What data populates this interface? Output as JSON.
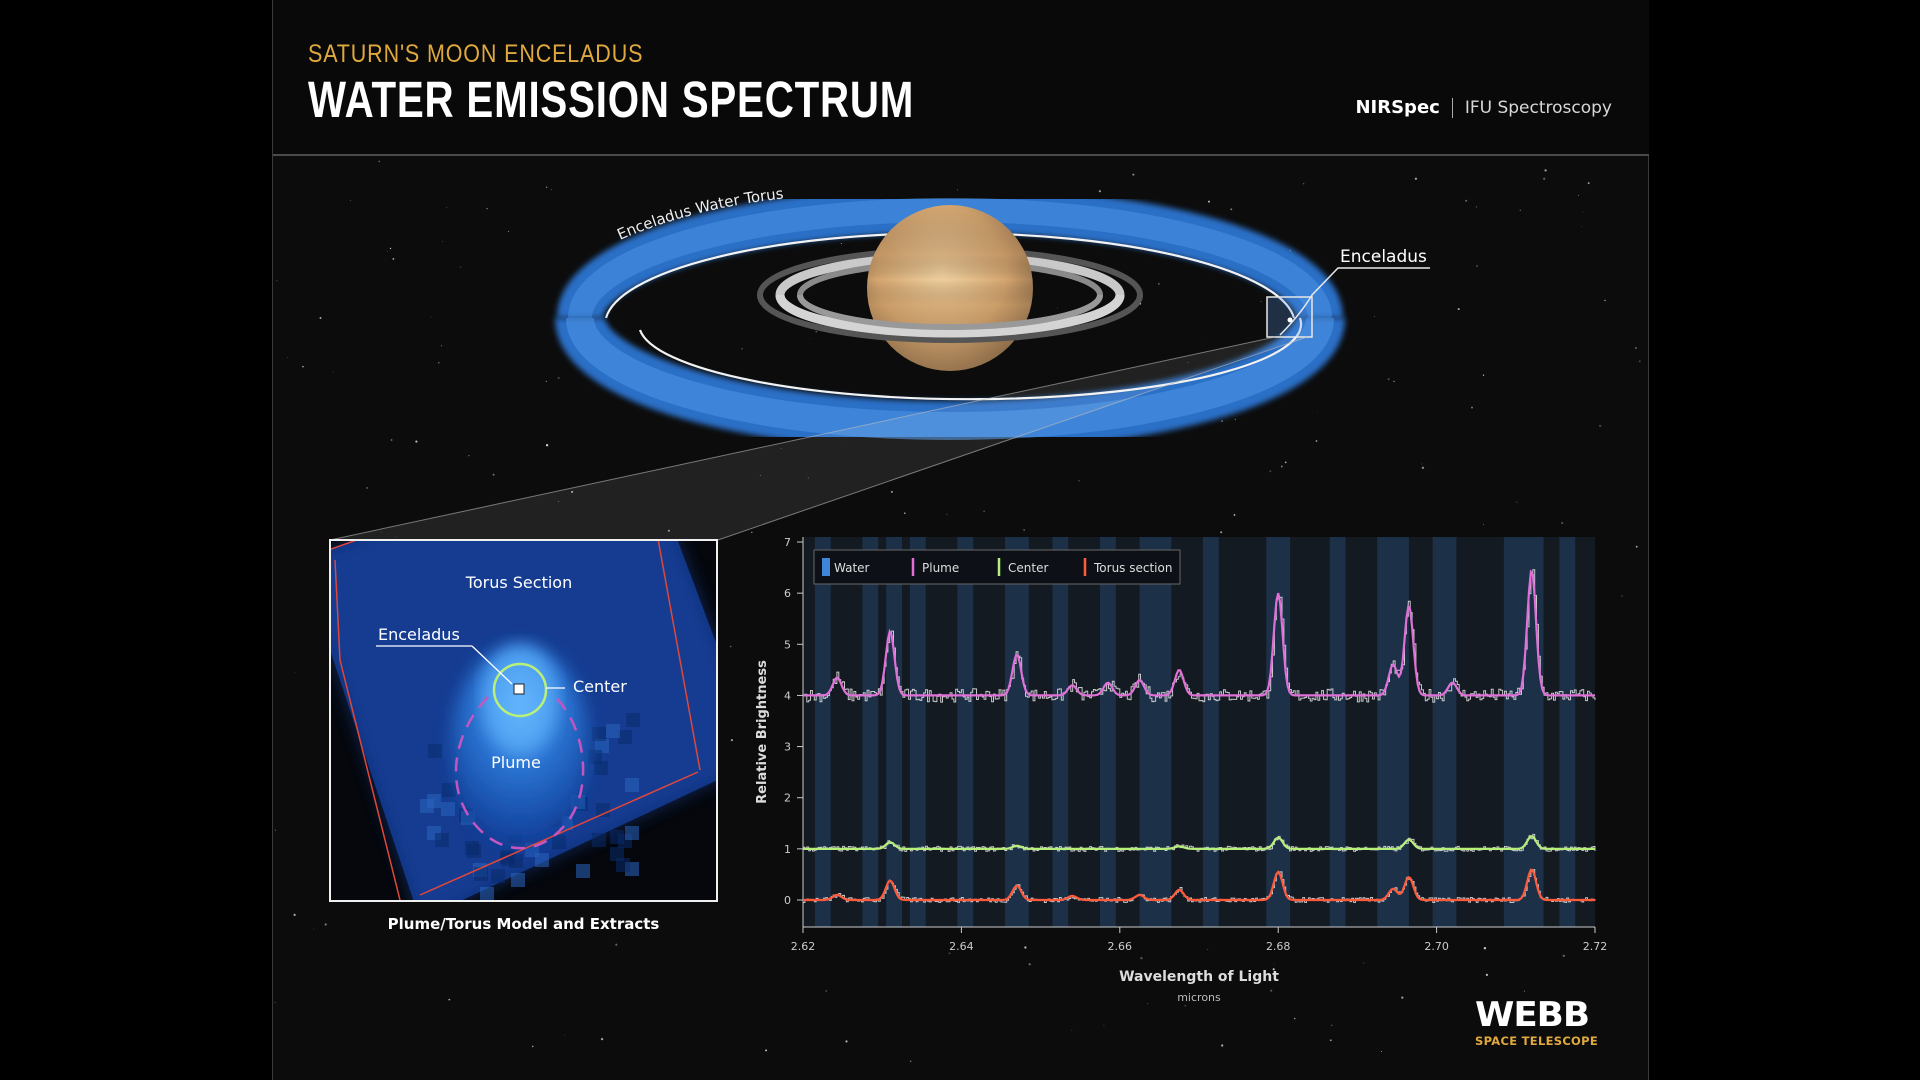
{
  "header": {
    "subtitle": "SATURN'S MOON ENCELADUS",
    "title": "WATER EMISSION SPECTRUM",
    "instrument": "NIRSpec",
    "mode": "IFU Spectroscopy"
  },
  "illustration": {
    "torus_label": "Enceladus Water Torus",
    "moon_label": "Enceladus"
  },
  "inset": {
    "torus_section_label": "Torus Section",
    "enceladus_label": "Enceladus",
    "center_label": "Center",
    "plume_label": "Plume",
    "caption": "Plume/Torus Model and Extracts"
  },
  "chart_data": {
    "type": "line",
    "xlabel": "Wavelength of Light",
    "xunit": "microns",
    "ylabel": "Relative Brightness",
    "xlim": [
      2.62,
      2.72
    ],
    "ylim": [
      -0.5,
      7
    ],
    "xticks": [
      "2.62",
      "2.64",
      "2.66",
      "2.68",
      "2.70",
      "2.72"
    ],
    "yticks": [
      "0",
      "1",
      "2",
      "3",
      "4",
      "5",
      "6",
      "7"
    ],
    "legend_position": "top-left",
    "water_bands": [
      [
        2.6215,
        2.6235
      ],
      [
        2.6275,
        2.6295
      ],
      [
        2.6305,
        2.6325
      ],
      [
        2.6335,
        2.6355
      ],
      [
        2.6395,
        2.6415
      ],
      [
        2.6455,
        2.6485
      ],
      [
        2.6515,
        2.6535
      ],
      [
        2.6575,
        2.6595
      ],
      [
        2.6625,
        2.6665
      ],
      [
        2.6705,
        2.6725
      ],
      [
        2.6785,
        2.6815
      ],
      [
        2.6865,
        2.6885
      ],
      [
        2.6925,
        2.6965
      ],
      [
        2.6995,
        2.7025
      ],
      [
        2.7085,
        2.7135
      ],
      [
        2.7155,
        2.7175
      ]
    ],
    "series": [
      {
        "name": "Water",
        "color": "#3f86d8"
      },
      {
        "name": "Plume",
        "color": "#e070d8",
        "baseline": 4.0,
        "peaks": [
          [
            2.6243,
            0.35
          ],
          [
            2.631,
            1.25
          ],
          [
            2.647,
            0.8
          ],
          [
            2.654,
            0.2
          ],
          [
            2.6585,
            0.25
          ],
          [
            2.6625,
            0.3
          ],
          [
            2.6675,
            0.5
          ],
          [
            2.68,
            2.0
          ],
          [
            2.6945,
            0.6
          ],
          [
            2.6965,
            1.75
          ],
          [
            2.702,
            0.25
          ],
          [
            2.712,
            2.45
          ]
        ]
      },
      {
        "name": "Center",
        "color": "#b6f07a",
        "baseline": 1.0,
        "peaks": [
          [
            2.631,
            0.13
          ],
          [
            2.647,
            0.06
          ],
          [
            2.6675,
            0.05
          ],
          [
            2.68,
            0.22
          ],
          [
            2.6965,
            0.18
          ],
          [
            2.712,
            0.25
          ]
        ]
      },
      {
        "name": "Torus section",
        "color": "#ff5a3a",
        "baseline": 0.0,
        "peaks": [
          [
            2.6243,
            0.1
          ],
          [
            2.631,
            0.38
          ],
          [
            2.647,
            0.28
          ],
          [
            2.654,
            0.08
          ],
          [
            2.6625,
            0.1
          ],
          [
            2.6675,
            0.2
          ],
          [
            2.68,
            0.55
          ],
          [
            2.6945,
            0.22
          ],
          [
            2.6965,
            0.45
          ],
          [
            2.712,
            0.6
          ]
        ]
      }
    ]
  },
  "branding": {
    "logo": "WEBB",
    "logo_sub": "SPACE TELESCOPE",
    "accent": "#e0a93e"
  }
}
